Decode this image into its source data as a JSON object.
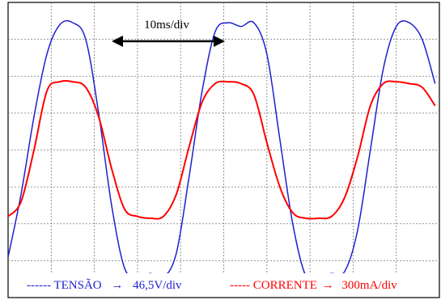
{
  "chart_data": {
    "type": "line",
    "grid": true,
    "annotation": "10ms/div",
    "legend": [
      {
        "prefix": "------ TENSÃO",
        "arrow": "→",
        "value": "46,5V/div",
        "color": "#1f1fcf"
      },
      {
        "prefix": "----- CORRENTE",
        "arrow": "→",
        "value": "300mA/div",
        "color": "#ff0000"
      }
    ],
    "x_unit_per_div": "10ms",
    "x_range_div": [
      0,
      10
    ],
    "y_range_div": [
      -4,
      4
    ],
    "series": [
      {
        "name": "TENSÃO",
        "color": "#1f1fcf",
        "x_div": [
          0.0,
          0.3,
          0.6,
          0.9,
          1.2,
          1.5,
          1.8,
          2.1,
          2.4,
          2.7,
          3.0,
          3.3,
          3.6,
          3.9,
          4.2,
          4.5,
          4.8,
          5.1,
          5.4,
          5.7,
          6.0,
          6.3,
          6.6,
          6.9,
          7.2,
          7.5,
          7.8,
          8.1,
          8.4,
          8.7,
          9.0,
          9.3,
          9.6,
          9.9
        ],
        "y_div": [
          -2.9,
          -1.2,
          0.9,
          2.6,
          3.4,
          3.45,
          3.0,
          1.0,
          -1.5,
          -3.2,
          -3.45,
          -3.35,
          -3.45,
          -2.8,
          -0.7,
          1.6,
          3.2,
          3.45,
          3.35,
          3.45,
          2.6,
          0.3,
          -2.0,
          -3.4,
          -3.4,
          -3.35,
          -3.3,
          -2.2,
          0.0,
          2.2,
          3.35,
          3.45,
          3.0,
          1.8
        ]
      },
      {
        "name": "CORRENTE",
        "color": "#ff0000",
        "x_div": [
          0.0,
          0.3,
          0.6,
          0.9,
          1.2,
          1.5,
          1.8,
          2.1,
          2.4,
          2.7,
          3.0,
          3.3,
          3.6,
          3.9,
          4.2,
          4.5,
          4.8,
          5.1,
          5.4,
          5.7,
          6.0,
          6.3,
          6.6,
          6.9,
          7.2,
          7.5,
          7.8,
          8.1,
          8.4,
          8.7,
          9.0,
          9.3,
          9.6,
          9.9
        ],
        "y_div": [
          -1.8,
          -1.4,
          0.0,
          1.6,
          1.85,
          1.85,
          1.7,
          0.9,
          -0.5,
          -1.6,
          -1.8,
          -1.85,
          -1.8,
          -1.2,
          0.1,
          1.3,
          1.8,
          1.85,
          1.8,
          1.5,
          0.2,
          -1.0,
          -1.7,
          -1.85,
          -1.85,
          -1.8,
          -1.3,
          -0.2,
          1.2,
          1.8,
          1.85,
          1.8,
          1.7,
          1.2
        ]
      }
    ]
  }
}
